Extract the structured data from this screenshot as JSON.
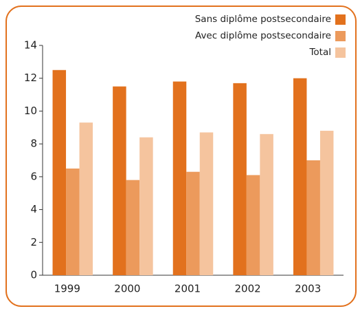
{
  "chart_data": {
    "type": "bar",
    "categories": [
      "1999",
      "2000",
      "2001",
      "2002",
      "2003"
    ],
    "series": [
      {
        "name": "Sans diplôme postsecondaire",
        "color": "#e2711d",
        "values": [
          12.5,
          11.5,
          11.8,
          11.7,
          12.0
        ]
      },
      {
        "name": "Avec diplôme postsecondaire",
        "color": "#ec9a5c",
        "values": [
          6.5,
          5.8,
          6.3,
          6.1,
          7.0
        ]
      },
      {
        "name": "Total",
        "color": "#f5c49e",
        "values": [
          9.3,
          8.4,
          8.7,
          8.6,
          8.8
        ]
      }
    ],
    "ylim": [
      0,
      14
    ],
    "yticks": [
      0,
      2,
      4,
      6,
      8,
      10,
      12,
      14
    ],
    "legend": "top-right"
  }
}
